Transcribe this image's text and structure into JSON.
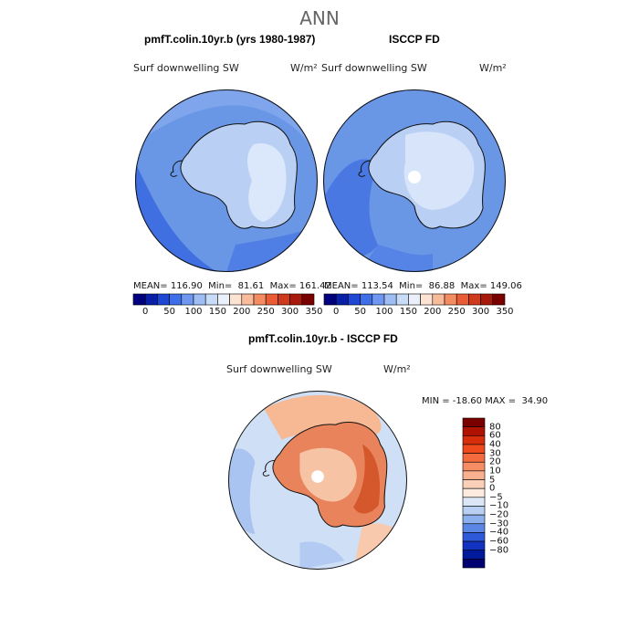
{
  "figure_title": "ANN",
  "colors": {
    "ocean_mid": "#6a96e6",
    "ocean_light": "#9bbdf0",
    "ocean_dark": "#3a6bd8",
    "land_light": "#c9daf6",
    "land_pale": "#e0ebfa",
    "coast": "#111111",
    "diff_ocean": "#cfe0f6",
    "diff_land": "#e8835b",
    "diff_land_light": "#f7c3a5",
    "diff_land_dark": "#d4582c"
  },
  "panels": [
    {
      "title": "pmfT.colin.10yr.b (yrs 1980-1987)",
      "variable": "Surf downwelling SW",
      "units": "W/m²",
      "stats": "MEAN= 116.90  Min=  81.61  Max= 161.42"
    },
    {
      "title": "ISCCP FD",
      "variable": "Surf downwelling SW",
      "units": "W/m²",
      "stats": "MEAN= 113.54  Min=  86.88  Max= 149.06"
    },
    {
      "title": "pmfT.colin.10yr.b - ISCCP FD",
      "variable": "Surf downwelling SW",
      "units": "W/m²",
      "stats": "MIN = -18.60 MAX =  34.90"
    }
  ],
  "chart_data": [
    {
      "type": "heatmap",
      "projection": "south polar stereographic",
      "title": "pmfT.colin.10yr.b (yrs 1980-1987)",
      "subtitle": "Surf downwelling SW",
      "units": "W/m²",
      "mean": 116.9,
      "min": 81.61,
      "max": 161.42,
      "colorbar": {
        "orientation": "horizontal",
        "levels": [
          0,
          50,
          100,
          150,
          200,
          250,
          300,
          350
        ],
        "colors": [
          "#00007f",
          "#0a1fa8",
          "#1f47d6",
          "#3f6fe8",
          "#6e97ef",
          "#9dbdf4",
          "#c9dcf7",
          "#eaf1fb",
          "#fde4d2",
          "#f9bc9a",
          "#f48c63",
          "#e95c36",
          "#d03a1c",
          "#a81a0b",
          "#7a0000"
        ]
      }
    },
    {
      "type": "heatmap",
      "projection": "south polar stereographic",
      "title": "ISCCP FD",
      "subtitle": "Surf downwelling SW",
      "units": "W/m²",
      "mean": 113.54,
      "min": 86.88,
      "max": 149.06,
      "colorbar": {
        "orientation": "horizontal",
        "levels": [
          0,
          50,
          100,
          150,
          200,
          250,
          300,
          350
        ],
        "colors": [
          "#00007f",
          "#0a1fa8",
          "#1f47d6",
          "#3f6fe8",
          "#6e97ef",
          "#9dbdf4",
          "#c9dcf7",
          "#eaf1fb",
          "#fde4d2",
          "#f9bc9a",
          "#f48c63",
          "#e95c36",
          "#d03a1c",
          "#a81a0b",
          "#7a0000"
        ]
      }
    },
    {
      "type": "heatmap",
      "projection": "south polar stereographic",
      "title": "pmfT.colin.10yr.b - ISCCP FD",
      "subtitle": "Surf downwelling SW",
      "units": "W/m²",
      "min": -18.6,
      "max": 34.9,
      "colorbar": {
        "orientation": "vertical",
        "levels": [
          "80",
          "60",
          "40",
          "30",
          "20",
          "10",
          "5",
          "0",
          "−5",
          "−10",
          "−20",
          "−30",
          "−40",
          "−60",
          "−80"
        ],
        "colors": [
          "#7a0000",
          "#b01200",
          "#d62e0a",
          "#ee4a1e",
          "#f46b3f",
          "#f78d64",
          "#f9b08f",
          "#fbd0b8",
          "#fdebdf",
          "#dbe6f6",
          "#b8cff2",
          "#8cafed",
          "#5a86e5",
          "#2e5ad9",
          "#1233c2",
          "#001a9c",
          "#000070"
        ]
      }
    }
  ]
}
